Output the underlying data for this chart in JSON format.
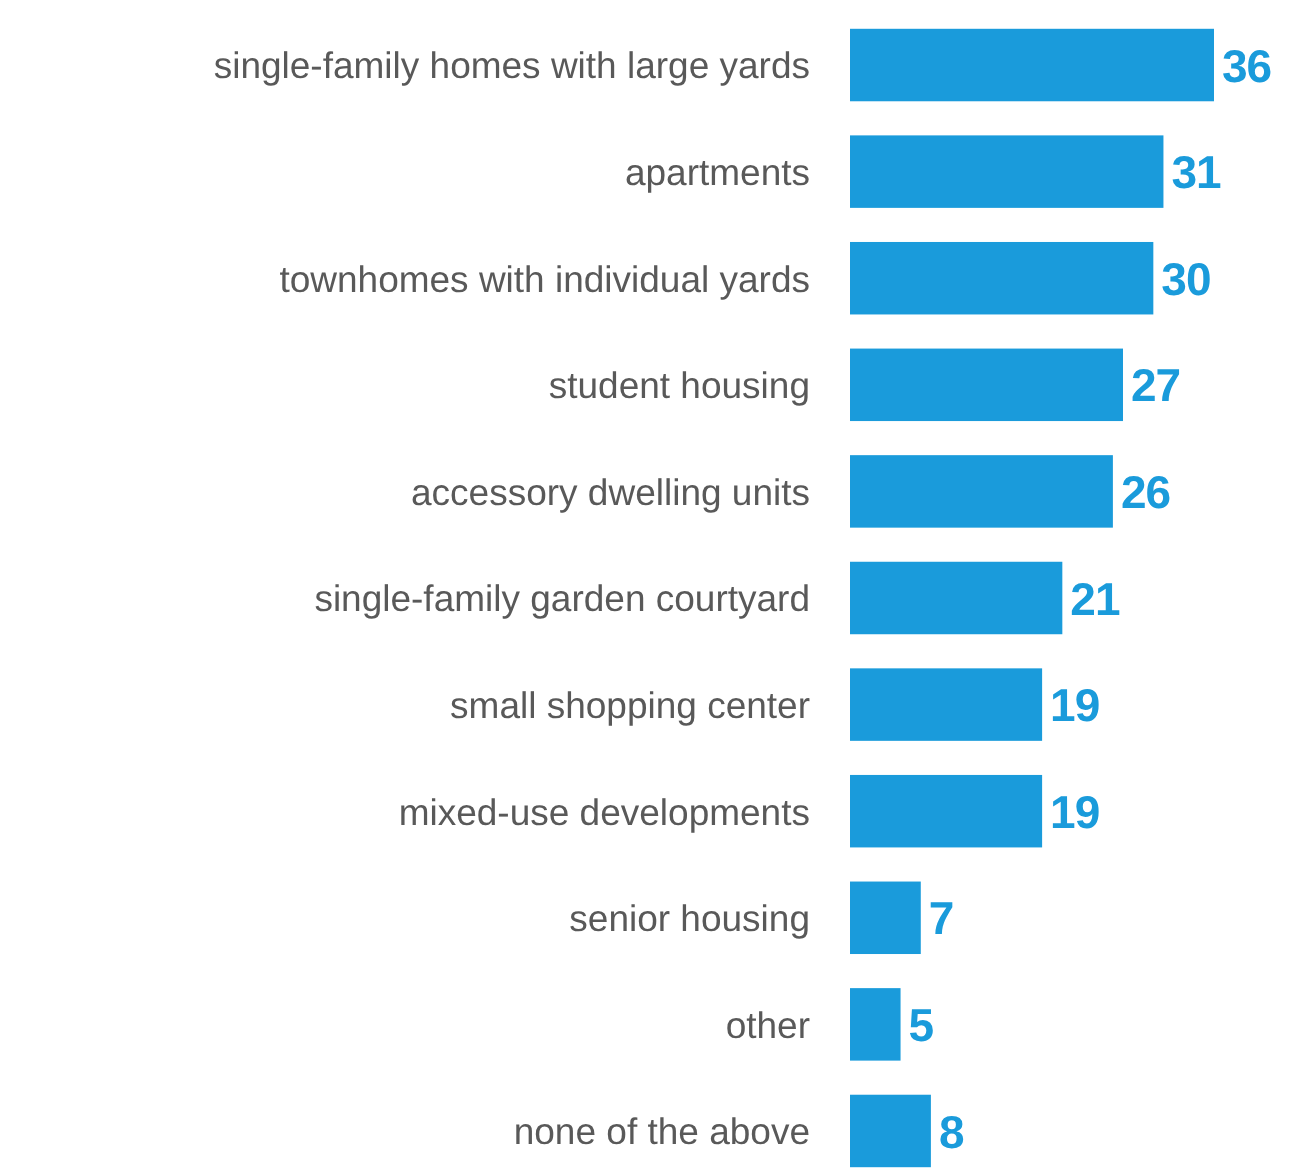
{
  "chart_data": {
    "type": "bar",
    "orientation": "horizontal",
    "categories": [
      "single-family homes with large yards",
      "apartments",
      "townhomes with individual yards",
      "student housing",
      "accessory dwelling units",
      "single-family garden courtyard",
      "small shopping center",
      "mixed-use developments",
      "senior housing",
      "other",
      "none of the above"
    ],
    "values": [
      36,
      31,
      30,
      27,
      26,
      21,
      19,
      19,
      7,
      5,
      8
    ],
    "color": "#1a9bdb",
    "data_labels": true
  }
}
